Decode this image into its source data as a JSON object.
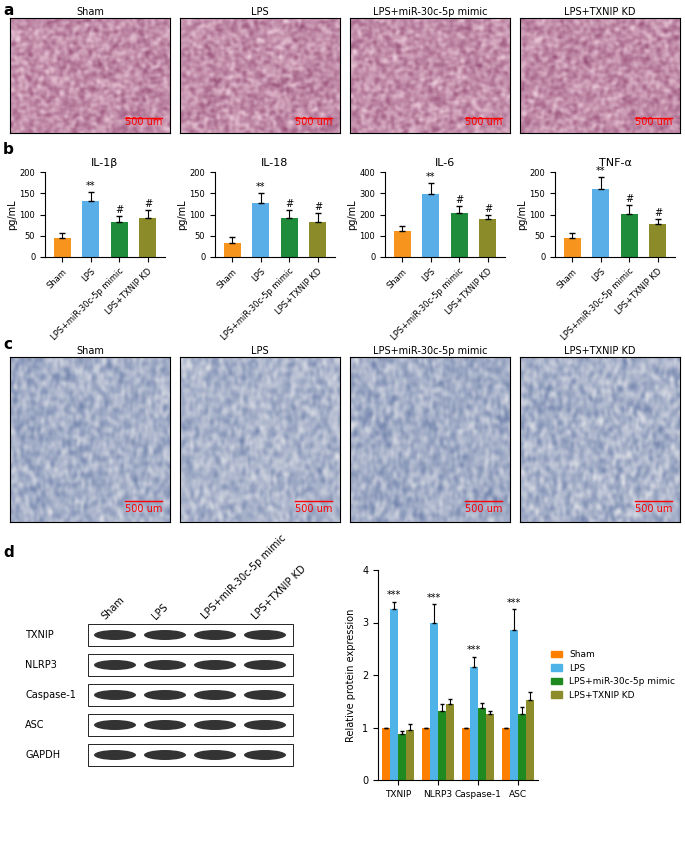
{
  "panel_labels": [
    "a",
    "b",
    "c",
    "d"
  ],
  "image_panels": [
    {
      "titles": [
        "Sham",
        "LPS",
        "LPS+miR-30c-5p mimic",
        "LPS+TXNIP KD"
      ],
      "scale_bar": "500 um"
    },
    {
      "titles": [
        "Sham",
        "LPS",
        "LPS+miR-30c-5p mimic",
        "LPS+TXNIP KD"
      ],
      "scale_bar": "500 um"
    }
  ],
  "blot": {
    "lanes": [
      "Sham",
      "LPS",
      "LPS+miR-30c-5p mimic",
      "LPS+TXNIP KD"
    ],
    "rows": [
      "TXNIP",
      "NLRP3",
      "Caspase-1",
      "ASC",
      "GAPDH"
    ]
  },
  "chart_data": [
    {
      "type": "bar",
      "title": "IL-1β",
      "y_label": "pg/mL",
      "categories": [
        "Sham",
        "LPS",
        "LPS+miR-30c-5p mimic",
        "LPS+TXNIP KD"
      ],
      "colors": [
        "#f7941d",
        "#5aaee8",
        "#1e8c3a",
        "#8b8b2a"
      ],
      "values": [
        45,
        132,
        82,
        92
      ],
      "errors": [
        12,
        22,
        15,
        18
      ],
      "ylim": [
        0,
        200
      ],
      "yticks": [
        0,
        50,
        100,
        150,
        200
      ],
      "annotations": [
        {
          "category": "LPS",
          "text": "**"
        },
        {
          "category": "LPS+miR-30c-5p mimic",
          "text": "#"
        },
        {
          "category": "LPS+TXNIP KD",
          "text": "#"
        }
      ]
    },
    {
      "type": "bar",
      "title": "IL-18",
      "y_label": "pg/mL",
      "categories": [
        "Sham",
        "LPS",
        "LPS+miR-30c-5p mimic",
        "LPS+TXNIP KD"
      ],
      "colors": [
        "#f7941d",
        "#5aaee8",
        "#1e8c3a",
        "#8b8b2a"
      ],
      "values": [
        33,
        126,
        92,
        82
      ],
      "errors": [
        15,
        25,
        18,
        22
      ],
      "ylim": [
        0,
        200
      ],
      "yticks": [
        0,
        50,
        100,
        150,
        200
      ],
      "annotations": [
        {
          "category": "LPS",
          "text": "**"
        },
        {
          "category": "LPS+miR-30c-5p mimic",
          "text": "#"
        },
        {
          "category": "LPS+TXNIP KD",
          "text": "#"
        }
      ]
    },
    {
      "type": "bar",
      "title": "IL-6",
      "y_label": "pg/mL",
      "categories": [
        "Sham",
        "LPS",
        "LPS+miR-30c-5p mimic",
        "LPS+TXNIP KD"
      ],
      "colors": [
        "#f7941d",
        "#5aaee8",
        "#1e8c3a",
        "#8b8b2a"
      ],
      "values": [
        122,
        298,
        205,
        180
      ],
      "errors": [
        25,
        50,
        35,
        20
      ],
      "ylim": [
        0,
        400
      ],
      "yticks": [
        0,
        100,
        200,
        300,
        400
      ],
      "annotations": [
        {
          "category": "LPS",
          "text": "**"
        },
        {
          "category": "LPS+miR-30c-5p mimic",
          "text": "#"
        },
        {
          "category": "LPS+TXNIP KD",
          "text": "#"
        }
      ]
    },
    {
      "type": "bar",
      "title": "TNF-α",
      "y_label": "pg/mL",
      "categories": [
        "Sham",
        "LPS",
        "LPS+miR-30c-5p mimic",
        "LPS+TXNIP KD"
      ],
      "colors": [
        "#f7941d",
        "#5aaee8",
        "#1e8c3a",
        "#8b8b2a"
      ],
      "values": [
        45,
        160,
        102,
        78
      ],
      "errors": [
        12,
        28,
        20,
        12
      ],
      "ylim": [
        0,
        200
      ],
      "yticks": [
        0,
        50,
        100,
        150,
        200
      ],
      "annotations": [
        {
          "category": "LPS",
          "text": "**"
        },
        {
          "category": "LPS+miR-30c-5p mimic",
          "text": "#"
        },
        {
          "category": "LPS+TXNIP KD",
          "text": "#"
        }
      ]
    },
    {
      "type": "grouped_bar",
      "y_label": "Relative protein expression",
      "categories": [
        "TXNIP",
        "NLRP3",
        "Caspase-1",
        "ASC"
      ],
      "series": [
        {
          "name": "Sham",
          "color": "#ff8000",
          "values": [
            1,
            1,
            1,
            1
          ],
          "errors": [
            0,
            0,
            0,
            0
          ]
        },
        {
          "name": "LPS",
          "color": "#4fb3e8",
          "values": [
            3.25,
            3.0,
            2.15,
            2.85
          ],
          "errors": [
            0.15,
            0.35,
            0.2,
            0.4
          ]
        },
        {
          "name": "LPS+miR-30c-5p mimic",
          "color": "#1f8a1f",
          "values": [
            0.88,
            1.32,
            1.38,
            1.25
          ],
          "errors": [
            0.06,
            0.12,
            0.08,
            0.15
          ]
        },
        {
          "name": "LPS+TXNIP KD",
          "color": "#8c8c2a",
          "values": [
            0.95,
            1.45,
            1.25,
            1.52
          ],
          "errors": [
            0.12,
            0.1,
            0.06,
            0.15
          ]
        }
      ],
      "ylim": [
        0,
        4
      ],
      "yticks": [
        0,
        1,
        2,
        3,
        4
      ],
      "legend": "right",
      "annotations": [
        {
          "category": "TXNIP",
          "series": "LPS",
          "text": "***"
        },
        {
          "category": "NLRP3",
          "series": "LPS",
          "text": "***"
        },
        {
          "category": "Caspase-1",
          "series": "LPS",
          "text": "***"
        },
        {
          "category": "ASC",
          "series": "LPS",
          "text": "***"
        }
      ]
    }
  ]
}
